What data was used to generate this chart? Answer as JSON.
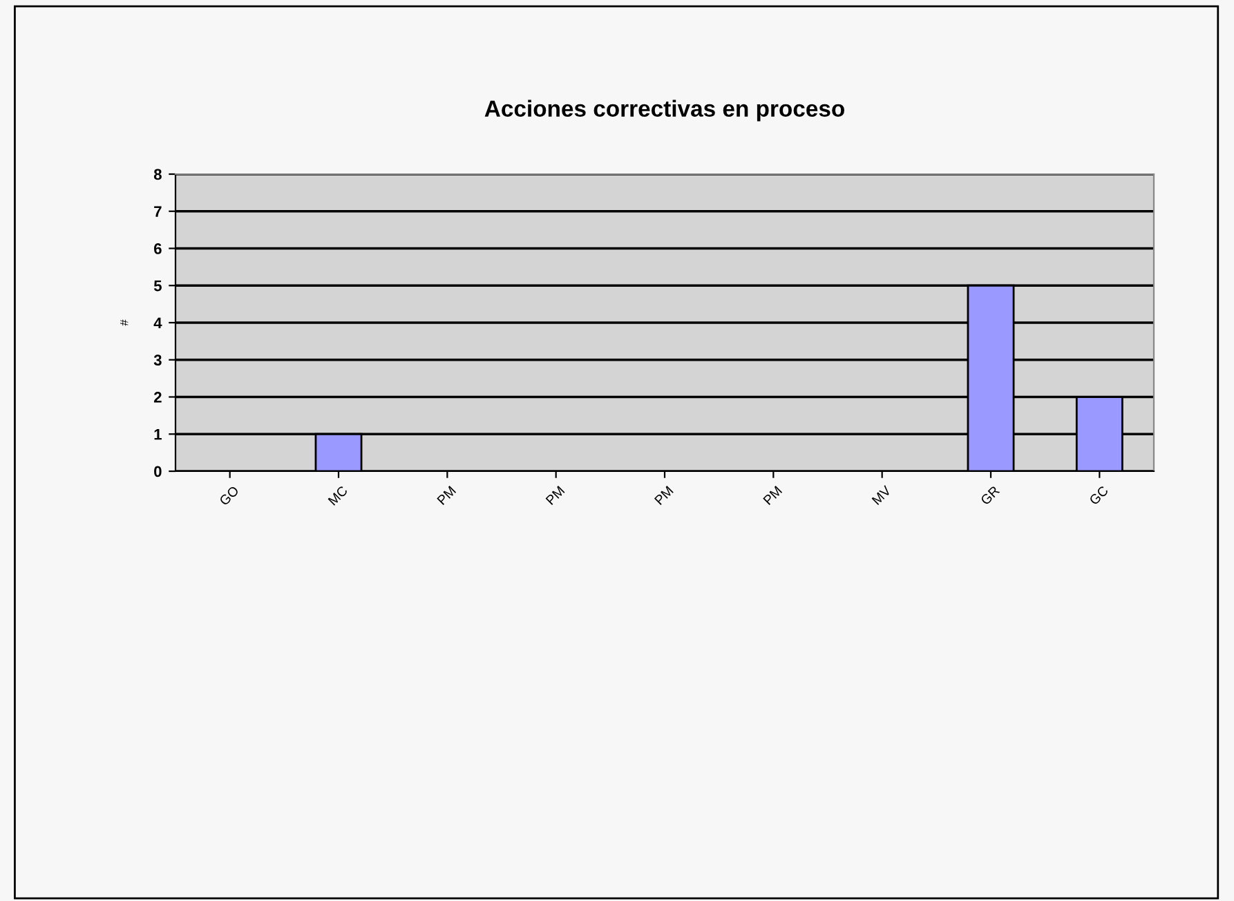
{
  "chart_data": {
    "type": "bar",
    "title": "Acciones correctivas en proceso",
    "ylabel": "#",
    "categories": [
      "GO",
      "MC",
      "PM",
      "PM",
      "PM",
      "PM",
      "MV",
      "GR",
      "GC"
    ],
    "values": [
      0,
      1,
      0,
      0,
      0,
      0,
      0,
      5,
      2
    ],
    "color": "#9999ff",
    "ylim": [
      0,
      8
    ],
    "yticks": [
      0,
      1,
      2,
      3,
      4,
      5,
      6,
      7,
      8
    ],
    "grid": "y",
    "legend": false
  }
}
